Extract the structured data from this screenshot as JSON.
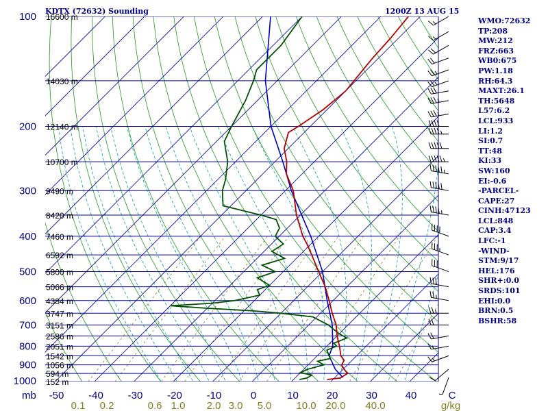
{
  "header": {
    "station": "KDTX (72632) Sounding",
    "time": "1200Z 13 AUG 15"
  },
  "stats": [
    "WMO:72632",
    "TP:208",
    "MW:212",
    "FRZ:663",
    "WB0:675",
    "PW:1.18",
    "RH:64.3",
    "MAXT:26.1",
    "TH:5648",
    "L57:6.2",
    "LCL:933",
    "LI:1.2",
    "SI:0.7",
    "TT:48",
    "KI:33",
    "SW:160",
    "EI:-0.6",
    "-PARCEL-",
    "CAPE:27",
    "CINH:47123",
    "LCL:848",
    "CAP:3.4",
    "LFC:-1",
    "-WIND-",
    "STM:9/17",
    "HEL:176",
    "SHR+:0.0",
    "SRDS:101",
    "EHI:0.0",
    "BRN:0.5",
    "BSHR:58"
  ],
  "colors": {
    "isobar": "#0000a0",
    "isotherm": "#0000a0",
    "dry_adiabat": "#1a9a1a",
    "moist_adiabat": "#00a0a0",
    "mixing_ratio": "#808020",
    "temperature": "#b00000",
    "dewpoint": "#005000",
    "parcel": "#0000c0",
    "pressure_label": "#000080",
    "temp_label": "#000080",
    "mix_label": "#808020",
    "barb": "#000000"
  },
  "chart_data": {
    "type": "line",
    "chart_kind": "skew-T log-p sounding",
    "pressure_levels": [
      100,
      200,
      300,
      400,
      500,
      600,
      700,
      800,
      900,
      1000
    ],
    "pressure_ticks": [
      "100",
      "200",
      "300",
      "400",
      "500",
      "600",
      "700",
      "800",
      "900",
      "1000"
    ],
    "height_labels": [
      {
        "p": 100,
        "label": "16600 m"
      },
      {
        "p": 150,
        "label": "14030 m"
      },
      {
        "p": 200,
        "label": "12140 m"
      },
      {
        "p": 250,
        "label": "10700 m"
      },
      {
        "p": 300,
        "label": "9490 m"
      },
      {
        "p": 350,
        "label": "8420 m"
      },
      {
        "p": 400,
        "label": "7460 m"
      },
      {
        "p": 450,
        "label": "6592 m"
      },
      {
        "p": 500,
        "label": "5800 m"
      },
      {
        "p": 550,
        "label": "5066 m"
      },
      {
        "p": 600,
        "label": "4384 m"
      },
      {
        "p": 650,
        "label": "3747 m"
      },
      {
        "p": 700,
        "label": "3151 m"
      },
      {
        "p": 750,
        "label": "2586 m"
      },
      {
        "p": 800,
        "label": "2051 m"
      },
      {
        "p": 850,
        "label": "1542 m"
      },
      {
        "p": 900,
        "label": "1056 m"
      },
      {
        "p": 950,
        "label": "594 m"
      },
      {
        "p": 1000,
        "label": "152 m"
      }
    ],
    "x_unit_label": "mb",
    "temp_ticks": [
      "-50",
      "-40",
      "-30",
      "-20",
      "-10",
      "0",
      "10",
      "20",
      "30",
      "40",
      "C"
    ],
    "temp_tick_values": [
      -50,
      -40,
      -30,
      -20,
      -10,
      0,
      10,
      20,
      30,
      40
    ],
    "mixing_ratio_labels": [
      "0.1",
      "0.2",
      "0.6",
      "1.0",
      "2.0",
      "3.0",
      "5.0",
      "10.0",
      "20.0",
      "40.0",
      "g/kg"
    ],
    "mixing_ratio_values": [
      0.1,
      0.2,
      0.6,
      1.0,
      2.0,
      3.0,
      5.0,
      10.0,
      20.0,
      40.0
    ],
    "temperature_profile": [
      [
        987,
        18.5
      ],
      [
        978,
        21.5
      ],
      [
        950,
        22.2
      ],
      [
        925,
        20.2
      ],
      [
        900,
        18.5
      ],
      [
        875,
        18.0
      ],
      [
        850,
        16.0
      ],
      [
        800,
        13.2
      ],
      [
        750,
        10.0
      ],
      [
        700,
        7.0
      ],
      [
        650,
        3.0
      ],
      [
        600,
        -1.0
      ],
      [
        550,
        -5.5
      ],
      [
        500,
        -11.0
      ],
      [
        450,
        -17.0
      ],
      [
        420,
        -21.0
      ],
      [
        400,
        -24.0
      ],
      [
        350,
        -31.0
      ],
      [
        300,
        -38.0
      ],
      [
        270,
        -44.0
      ],
      [
        250,
        -47.0
      ],
      [
        230,
        -51.0
      ],
      [
        208,
        -54.0
      ],
      [
        200,
        -53.0
      ],
      [
        180,
        -51.0
      ],
      [
        160,
        -50.0
      ],
      [
        150,
        -50.5
      ],
      [
        130,
        -51.5
      ],
      [
        115,
        -52.0
      ],
      [
        100,
        -53.0
      ]
    ],
    "dewpoint_profile": [
      [
        987,
        11.5
      ],
      [
        978,
        13.0
      ],
      [
        960,
        13.5
      ],
      [
        945,
        10.0
      ],
      [
        925,
        11.0
      ],
      [
        900,
        14.0
      ],
      [
        880,
        11.5
      ],
      [
        865,
        14.0
      ],
      [
        850,
        13.0
      ],
      [
        820,
        11.0
      ],
      [
        800,
        12.5
      ],
      [
        785,
        11.0
      ],
      [
        760,
        13.0
      ],
      [
        740,
        10.0
      ],
      [
        700,
        5.0
      ],
      [
        665,
        -1.0
      ],
      [
        650,
        -10.0
      ],
      [
        640,
        -18.0
      ],
      [
        630,
        -30.0
      ],
      [
        620,
        -40.0
      ],
      [
        610,
        -30.0
      ],
      [
        600,
        -25.0
      ],
      [
        580,
        -20.0
      ],
      [
        560,
        -22.0
      ],
      [
        545,
        -20.0
      ],
      [
        520,
        -25.0
      ],
      [
        500,
        -22.0
      ],
      [
        480,
        -27.0
      ],
      [
        460,
        -23.0
      ],
      [
        440,
        -28.0
      ],
      [
        420,
        -27.0
      ],
      [
        400,
        -31.0
      ],
      [
        380,
        -32.0
      ],
      [
        360,
        -35.0
      ],
      [
        350,
        -40.0
      ],
      [
        330,
        -52.0
      ],
      [
        300,
        -56.0
      ],
      [
        280,
        -58.0
      ],
      [
        250,
        -62.0
      ],
      [
        220,
        -68.0
      ],
      [
        200,
        -70.0
      ],
      [
        170,
        -73.0
      ],
      [
        150,
        -76.0
      ],
      [
        140,
        -78.0
      ],
      [
        120,
        -78.0
      ],
      [
        100,
        -80.0
      ]
    ],
    "parcel_profile": [
      [
        975,
        22.0
      ],
      [
        925,
        18.0
      ],
      [
        850,
        13.0
      ],
      [
        800,
        11.5
      ],
      [
        700,
        6.0
      ],
      [
        600,
        -1.5
      ],
      [
        500,
        -10.0
      ],
      [
        400,
        -22.0
      ],
      [
        300,
        -38.5
      ],
      [
        250,
        -48.0
      ],
      [
        200,
        -60.0
      ],
      [
        150,
        -73.0
      ],
      [
        100,
        -88.0
      ]
    ],
    "wind_profile": [
      {
        "p": 975,
        "dir": 200,
        "spd": 5
      },
      {
        "p": 925,
        "dir": 230,
        "spd": 10
      },
      {
        "p": 850,
        "dir": 250,
        "spd": 15
      },
      {
        "p": 800,
        "dir": 260,
        "spd": 15
      },
      {
        "p": 750,
        "dir": 260,
        "spd": 20
      },
      {
        "p": 700,
        "dir": 270,
        "spd": 20
      },
      {
        "p": 650,
        "dir": 270,
        "spd": 25
      },
      {
        "p": 600,
        "dir": 280,
        "spd": 25
      },
      {
        "p": 550,
        "dir": 280,
        "spd": 30
      },
      {
        "p": 500,
        "dir": 290,
        "spd": 30
      },
      {
        "p": 450,
        "dir": 290,
        "spd": 35
      },
      {
        "p": 400,
        "dir": 290,
        "spd": 40
      },
      {
        "p": 350,
        "dir": 280,
        "spd": 45
      },
      {
        "p": 300,
        "dir": 280,
        "spd": 50
      },
      {
        "p": 270,
        "dir": 280,
        "spd": 55
      },
      {
        "p": 250,
        "dir": 270,
        "spd": 55
      },
      {
        "p": 230,
        "dir": 270,
        "spd": 50
      },
      {
        "p": 210,
        "dir": 270,
        "spd": 45
      },
      {
        "p": 200,
        "dir": 270,
        "spd": 40
      },
      {
        "p": 185,
        "dir": 260,
        "spd": 35
      },
      {
        "p": 170,
        "dir": 260,
        "spd": 35
      },
      {
        "p": 160,
        "dir": 260,
        "spd": 30
      },
      {
        "p": 150,
        "dir": 250,
        "spd": 25
      },
      {
        "p": 140,
        "dir": 250,
        "spd": 25
      },
      {
        "p": 130,
        "dir": 250,
        "spd": 20
      },
      {
        "p": 120,
        "dir": 240,
        "spd": 20
      },
      {
        "p": 110,
        "dir": 240,
        "spd": 15
      },
      {
        "p": 100,
        "dir": 240,
        "spd": 15
      }
    ],
    "xlim": [
      -50,
      50
    ],
    "ylim": [
      1000,
      100
    ],
    "y_scale": "log",
    "grid": true
  }
}
